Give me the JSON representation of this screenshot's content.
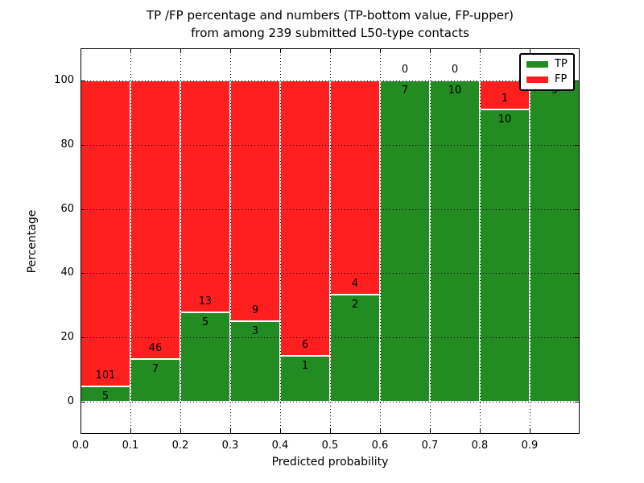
{
  "chart": {
    "title_line1": "TP /FP percentage and numbers (TP-bottom value, FP-upper)",
    "title_line2": "from among 239 submitted L50-type contacts",
    "xlabel": "Predicted probability",
    "ylabel": "Percentage"
  },
  "chart_data": {
    "type": "bar",
    "stacked": true,
    "normalized_to_percent": true,
    "title": "TP /FP percentage and numbers (TP-bottom value, FP-upper)\nfrom among 239 submitted L50-type contacts",
    "xlabel": "Predicted probability",
    "ylabel": "Percentage",
    "total_contacts": 239,
    "bin_edges": [
      0.0,
      0.1,
      0.2,
      0.3,
      0.4,
      0.5,
      0.6,
      0.7,
      0.8,
      0.9,
      1.0
    ],
    "categories": [
      "0.0-0.1",
      "0.1-0.2",
      "0.2-0.3",
      "0.3-0.4",
      "0.4-0.5",
      "0.5-0.6",
      "0.6-0.7",
      "0.7-0.8",
      "0.8-0.9",
      "0.9-1.0"
    ],
    "series": [
      {
        "name": "TP",
        "color": "#228b22",
        "counts": [
          5,
          7,
          5,
          3,
          1,
          2,
          7,
          10,
          10,
          9
        ]
      },
      {
        "name": "FP",
        "color": "#ff1f1f",
        "counts": [
          101,
          46,
          13,
          9,
          6,
          4,
          0,
          0,
          1,
          0
        ]
      }
    ],
    "tp_percent": [
      4.7,
      13.2,
      27.8,
      25.0,
      14.3,
      33.3,
      100.0,
      100.0,
      90.9,
      100.0
    ],
    "xlim": [
      0.0,
      1.0
    ],
    "ylim": [
      -10,
      110
    ],
    "x_ticks": [
      "0.0",
      "0.1",
      "0.2",
      "0.3",
      "0.4",
      "0.5",
      "0.6",
      "0.7",
      "0.8",
      "0.9"
    ],
    "y_ticks": [
      0,
      20,
      40,
      60,
      80,
      100
    ],
    "grid": "dotted",
    "legend": {
      "position": "upper right",
      "entries": [
        "TP",
        "FP"
      ]
    }
  }
}
